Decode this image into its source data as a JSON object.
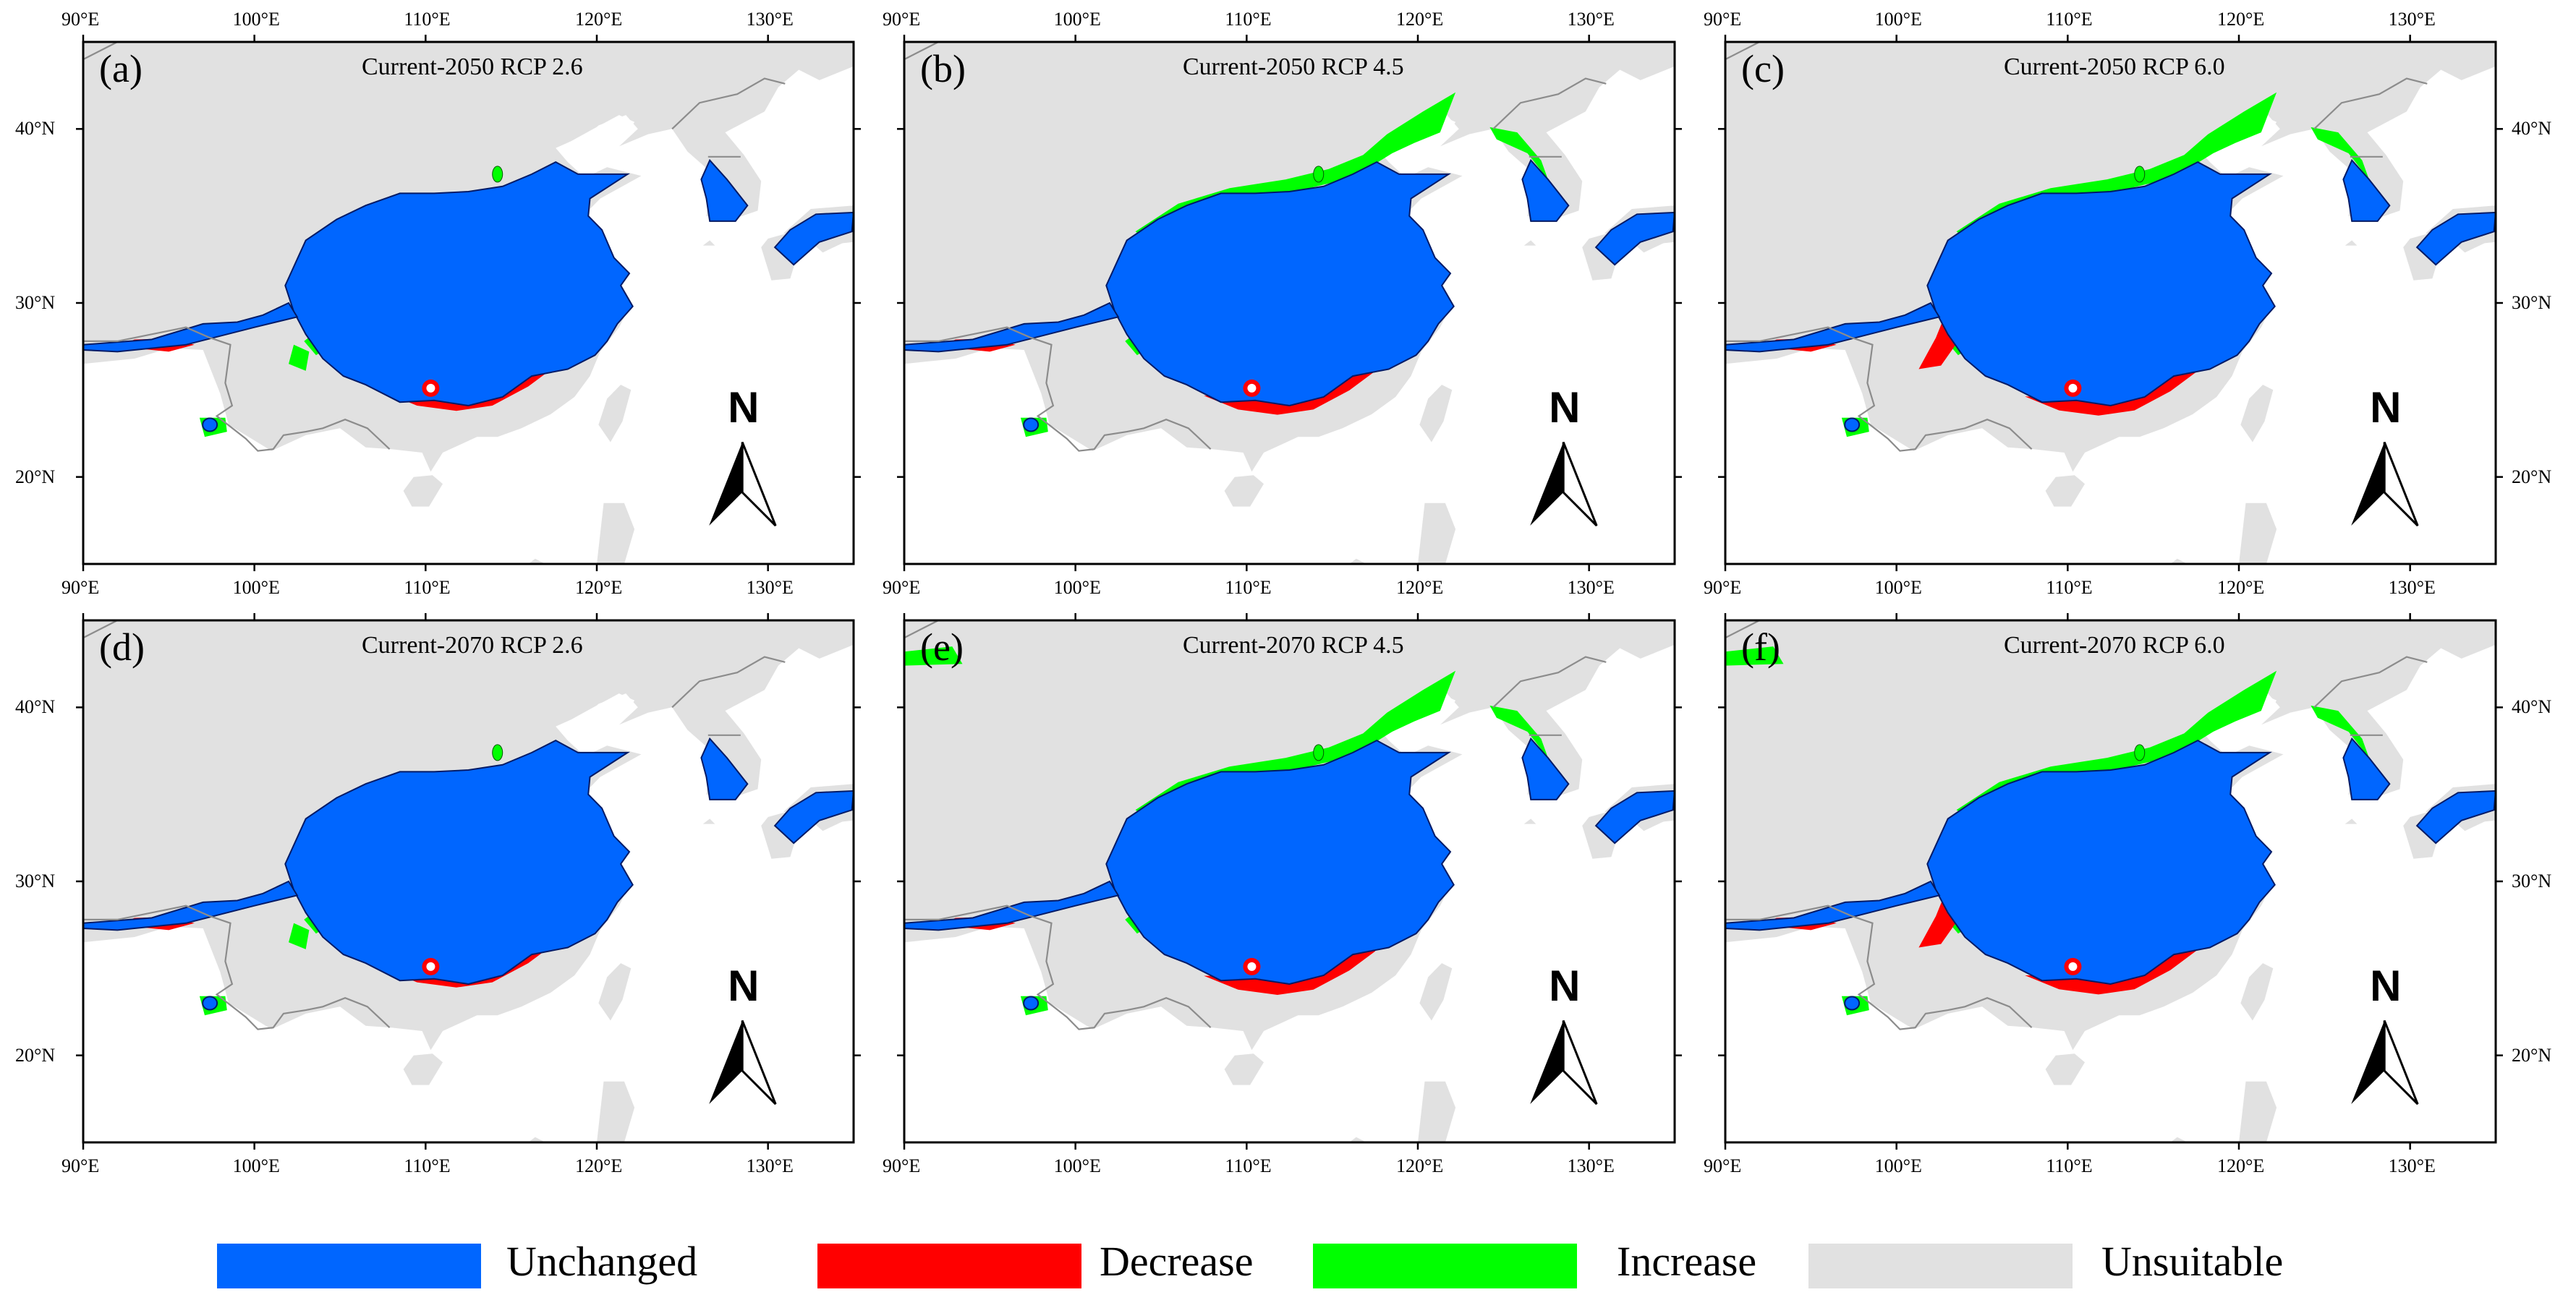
{
  "figure": {
    "panels": [
      {
        "letter": "(a)",
        "title": "Current-2050 RCP 2.6",
        "scenario": "2050",
        "rcp": "2.6"
      },
      {
        "letter": "(b)",
        "title": "Current-2050 RCP 4.5",
        "scenario": "2050",
        "rcp": "4.5"
      },
      {
        "letter": "(c)",
        "title": "Current-2050 RCP 6.0",
        "scenario": "2050",
        "rcp": "6.0"
      },
      {
        "letter": "(d)",
        "title": "Current-2070 RCP 2.6",
        "scenario": "2070",
        "rcp": "2.6"
      },
      {
        "letter": "(e)",
        "title": "Current-2070 RCP 4.5",
        "scenario": "2070",
        "rcp": "4.5"
      },
      {
        "letter": "(f)",
        "title": "Current-2070 RCP 6.0",
        "scenario": "2070",
        "rcp": "6.0"
      }
    ],
    "longitude_labels": [
      "90°E",
      "100°E",
      "110°E",
      "120°E",
      "130°E"
    ],
    "latitude_labels": [
      "40°N",
      "30°N",
      "20°N"
    ],
    "longitude_range": [
      90,
      135
    ],
    "latitude_range": [
      15,
      45
    ],
    "north_arrow_label": "N"
  },
  "legend": {
    "items": [
      {
        "label": "Unchanged",
        "color": "#0066ff"
      },
      {
        "label": "Decrease",
        "color": "#ff0000"
      },
      {
        "label": "Increase",
        "color": "#00ff00"
      },
      {
        "label": "Unsuitable",
        "color": "#e1e1e1"
      }
    ]
  },
  "colors": {
    "ocean": "#ffffff",
    "unsuitable": "#e1e1e1",
    "unchanged": "#0066ff",
    "decrease": "#ff0000",
    "increase": "#00ff00",
    "border": "#8c8c8c",
    "frame": "#000000"
  }
}
